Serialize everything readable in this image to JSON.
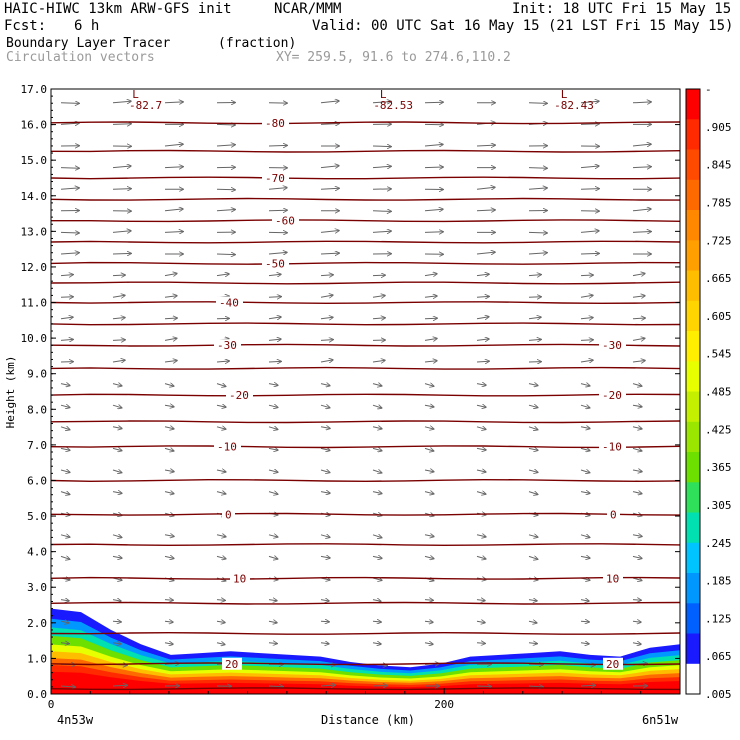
{
  "header": {
    "model": "HAIC-HIWC 13km ARW-GFS init",
    "org": "NCAR/MMM",
    "init": "Init: 18 UTC Fri 15 May 15",
    "fcst_label": "Fcst:",
    "fcst_value": "6 h",
    "valid": "Valid: 00 UTC Sat 16 May 15 (21 LST Fri 15 May 15)",
    "field1": "Boundary Layer Tracer",
    "field1_units": "(fraction)",
    "field2": "Circulation vectors",
    "xy": "XY= 259.5, 91.6 to 274.6,110.2"
  },
  "chart_data": {
    "type": "cross-section",
    "xlabel": "Distance (km)",
    "ylabel": "Height (km)",
    "xlim": [
      0,
      320
    ],
    "ylim": [
      0,
      17
    ],
    "x_ticks": [
      {
        "v": 0,
        "t": "0"
      },
      {
        "v": 200,
        "t": "200"
      }
    ],
    "x_end_labels": {
      "left": "4n53w",
      "right": "6n51w"
    },
    "y_ticks": [
      "0.0",
      "1.0",
      "2.0",
      "3.0",
      "4.0",
      "5.0",
      "6.0",
      "7.0",
      "8.0",
      "9.0",
      "10.0",
      "11.0",
      "12.0",
      "13.0",
      "14.0",
      "15.0",
      "16.0",
      "17.0"
    ],
    "temperature_contours": [
      {
        "h": 0.15,
        "label": ""
      },
      {
        "h": 0.85,
        "label": "20",
        "lx": 84
      },
      {
        "h": 1.7,
        "label": ""
      },
      {
        "h": 2.55,
        "label": ""
      },
      {
        "h": 3.25,
        "label": "10",
        "lx": 92
      },
      {
        "h": 4.2,
        "label": ""
      },
      {
        "h": 5.05,
        "label": "0",
        "lx": 84
      },
      {
        "h": 6.0,
        "label": ""
      },
      {
        "h": 6.95,
        "label": "-10",
        "lx": 76
      },
      {
        "h": 7.65,
        "label": ""
      },
      {
        "h": 8.4,
        "label": "-20",
        "lx": 88
      },
      {
        "h": 9.15,
        "label": ""
      },
      {
        "h": 9.8,
        "label": "-30",
        "lx": 76
      },
      {
        "h": 10.4,
        "label": ""
      },
      {
        "h": 11.0,
        "label": "-40",
        "lx": 78
      },
      {
        "h": 11.55,
        "label": ""
      },
      {
        "h": 12.1,
        "label": "-50",
        "lx": 124
      },
      {
        "h": 12.7,
        "label": ""
      },
      {
        "h": 13.3,
        "label": "-60",
        "lx": 134
      },
      {
        "h": 13.9,
        "label": ""
      },
      {
        "h": 14.5,
        "label": "-70",
        "lx": 124
      },
      {
        "h": 15.25,
        "label": ""
      },
      {
        "h": 16.05,
        "label": "-80",
        "lx": 124
      }
    ],
    "right_contour_labels": [
      {
        "h": 9.8,
        "label": "-30"
      },
      {
        "h": 8.4,
        "label": "-20"
      },
      {
        "h": 6.95,
        "label": "-10"
      },
      {
        "h": 5.05,
        "label": "0"
      },
      {
        "h": 3.25,
        "label": "10"
      },
      {
        "h": 0.85,
        "label": "20"
      }
    ],
    "lows": [
      {
        "x": 43,
        "label": "L",
        "value": "-82.7"
      },
      {
        "x": 169,
        "label": "L",
        "value": "-82.53"
      },
      {
        "x": 261,
        "label": "L",
        "value": "-82.43"
      }
    ],
    "tracer_top_km": [
      2.4,
      2.3,
      1.8,
      1.4,
      1.1,
      1.15,
      1.2,
      1.15,
      1.1,
      1.05,
      0.9,
      0.8,
      0.75,
      0.85,
      1.05,
      1.1,
      1.15,
      1.2,
      1.1,
      1.05,
      1.3,
      1.4
    ],
    "colorbar": {
      "labels": [
        "-",
        ".905",
        ".845",
        ".785",
        ".725",
        ".665",
        ".605",
        ".545",
        ".485",
        ".425",
        ".365",
        ".305",
        ".245",
        ".185",
        ".125",
        ".065",
        ".005"
      ],
      "colors": [
        "#ff0000",
        "#ff2a00",
        "#ff4a00",
        "#ff6a00",
        "#ff8800",
        "#ffa000",
        "#ffbd00",
        "#ffd400",
        "#ffee00",
        "#e8ff00",
        "#c4f000",
        "#9be600",
        "#6ee000",
        "#2ee05a",
        "#00e0b0",
        "#00c4ff",
        "#0098ff",
        "#0060ff",
        "#1a1aff",
        "#ffffff"
      ]
    }
  }
}
